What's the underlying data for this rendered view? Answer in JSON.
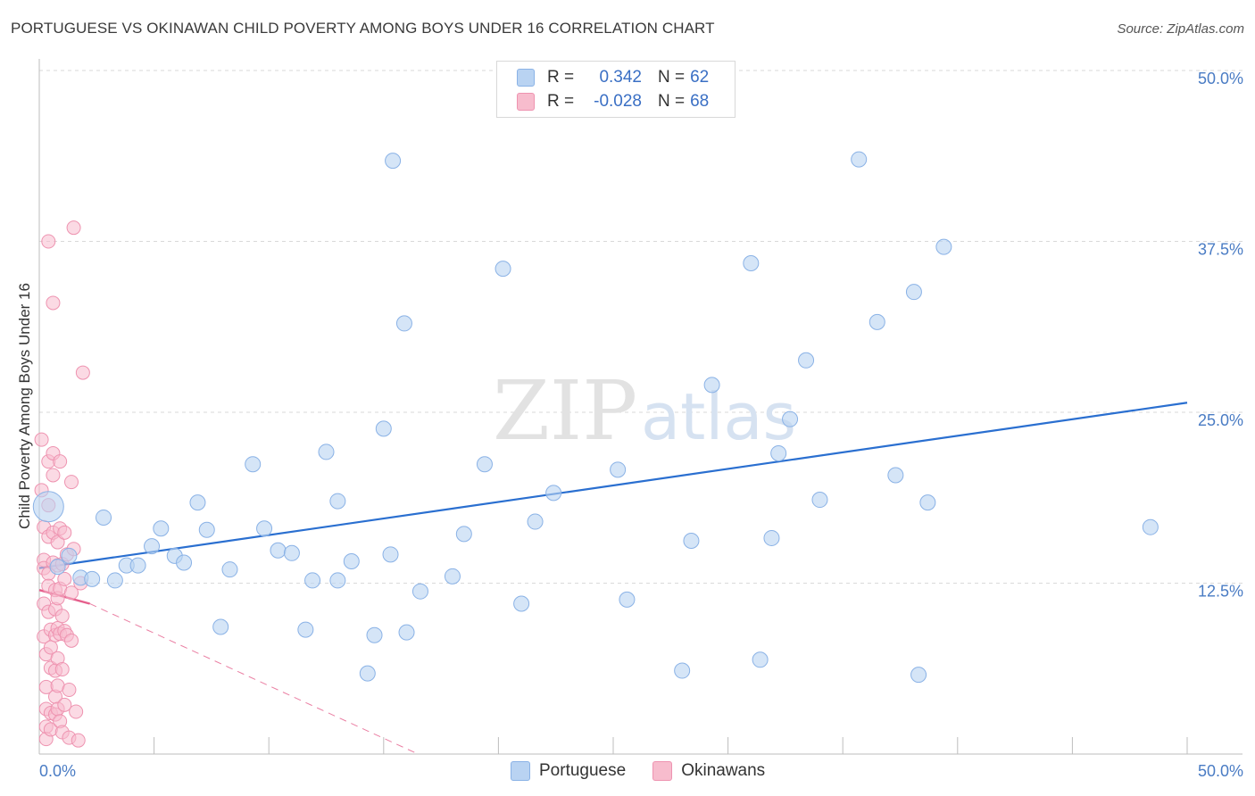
{
  "title": "PORTUGUESE VS OKINAWAN CHILD POVERTY AMONG BOYS UNDER 16 CORRELATION CHART",
  "source": "Source: ZipAtlas.com",
  "watermark": {
    "zip": "ZIP",
    "atlas": "atlas"
  },
  "colors": {
    "blue_fill": "#b9d3f2",
    "blue_stroke": "#8ab2e6",
    "blue_line": "#2a6fd0",
    "pink_fill": "#f7bccd",
    "pink_stroke": "#ee93b0",
    "pink_line": "#e55f8c",
    "grid": "#d9d9d9"
  },
  "legend": {
    "rows": [
      {
        "r_label": "R =",
        "r_value": "0.342",
        "n_label": "N =",
        "n_value": "62",
        "series": "Portuguese"
      },
      {
        "r_label": "R =",
        "r_value": "-0.028",
        "n_label": "N =",
        "n_value": "68",
        "series": "Okinawans"
      }
    ]
  },
  "bottom_legend": [
    "Portuguese",
    "Okinawans"
  ],
  "chart_data": {
    "type": "scatter",
    "title": "PORTUGUESE VS OKINAWAN CHILD POVERTY AMONG BOYS UNDER 16 CORRELATION CHART",
    "xlabel": "",
    "ylabel": "Child Poverty Among Boys Under 16",
    "xlim": [
      0,
      50
    ],
    "ylim": [
      0,
      50
    ],
    "x_tick_labels": [
      "0.0%",
      "50.0%"
    ],
    "y_ticks": [
      12.5,
      25.0,
      37.5,
      50.0
    ],
    "y_tick_labels": [
      "12.5%",
      "25.0%",
      "37.5%",
      "50.0%"
    ],
    "x_minor_ticks": [
      5,
      10,
      15,
      20,
      25,
      30,
      35,
      40,
      45,
      50
    ],
    "grid": true,
    "series": [
      {
        "name": "Portuguese",
        "r": 0.342,
        "n": 62,
        "trend": {
          "x": [
            0,
            50
          ],
          "y": [
            13.6,
            25.7
          ],
          "style": "solid"
        },
        "points": [
          [
            0.4,
            18.1
          ],
          [
            0.8,
            13.7
          ],
          [
            1.3,
            14.5
          ],
          [
            1.8,
            12.9
          ],
          [
            2.3,
            12.8
          ],
          [
            2.8,
            17.3
          ],
          [
            3.3,
            12.7
          ],
          [
            3.8,
            13.8
          ],
          [
            4.3,
            13.8
          ],
          [
            4.9,
            15.2
          ],
          [
            5.3,
            16.5
          ],
          [
            5.9,
            14.5
          ],
          [
            6.3,
            14.0
          ],
          [
            6.9,
            18.4
          ],
          [
            7.3,
            16.4
          ],
          [
            7.9,
            9.3
          ],
          [
            8.3,
            13.5
          ],
          [
            9.3,
            21.2
          ],
          [
            9.8,
            16.5
          ],
          [
            10.4,
            14.9
          ],
          [
            11.0,
            14.7
          ],
          [
            11.6,
            9.1
          ],
          [
            11.9,
            12.7
          ],
          [
            12.5,
            22.1
          ],
          [
            13.0,
            18.5
          ],
          [
            13.0,
            12.7
          ],
          [
            13.6,
            14.1
          ],
          [
            14.3,
            5.9
          ],
          [
            14.6,
            8.7
          ],
          [
            15.0,
            23.8
          ],
          [
            15.3,
            14.6
          ],
          [
            15.4,
            43.4
          ],
          [
            15.9,
            31.5
          ],
          [
            16.0,
            8.9
          ],
          [
            16.6,
            11.9
          ],
          [
            18.0,
            13.0
          ],
          [
            18.5,
            16.1
          ],
          [
            19.4,
            21.2
          ],
          [
            20.2,
            35.5
          ],
          [
            21.0,
            11.0
          ],
          [
            21.6,
            17.0
          ],
          [
            22.4,
            19.1
          ],
          [
            25.2,
            20.8
          ],
          [
            25.6,
            11.3
          ],
          [
            28.0,
            6.1
          ],
          [
            28.4,
            15.6
          ],
          [
            29.3,
            27.0
          ],
          [
            31.0,
            35.9
          ],
          [
            31.4,
            6.9
          ],
          [
            31.9,
            15.8
          ],
          [
            32.2,
            22.0
          ],
          [
            32.7,
            24.5
          ],
          [
            33.4,
            28.8
          ],
          [
            34.0,
            18.6
          ],
          [
            35.7,
            43.5
          ],
          [
            36.5,
            31.6
          ],
          [
            37.3,
            20.4
          ],
          [
            38.1,
            33.8
          ],
          [
            38.3,
            5.8
          ],
          [
            38.7,
            18.4
          ],
          [
            39.4,
            37.1
          ],
          [
            48.4,
            16.6
          ]
        ]
      },
      {
        "name": "Okinawans",
        "r": -0.028,
        "n": 68,
        "trend": {
          "x": [
            0,
            2.2
          ],
          "y": [
            12.0,
            11.0
          ],
          "style": "solid",
          "extension": {
            "x": [
              2.2,
              16.5
            ],
            "y": [
              11.0,
              0
            ]
          }
        },
        "points": [
          [
            0.1,
            23.0
          ],
          [
            0.1,
            19.3
          ],
          [
            0.2,
            16.6
          ],
          [
            0.2,
            14.2
          ],
          [
            0.2,
            13.6
          ],
          [
            0.2,
            11.0
          ],
          [
            0.2,
            8.6
          ],
          [
            0.3,
            7.3
          ],
          [
            0.3,
            4.9
          ],
          [
            0.3,
            3.3
          ],
          [
            0.3,
            2.0
          ],
          [
            0.3,
            1.1
          ],
          [
            0.4,
            37.5
          ],
          [
            0.4,
            21.4
          ],
          [
            0.4,
            18.2
          ],
          [
            0.4,
            15.9
          ],
          [
            0.4,
            13.2
          ],
          [
            0.4,
            12.3
          ],
          [
            0.4,
            10.4
          ],
          [
            0.5,
            9.1
          ],
          [
            0.5,
            7.8
          ],
          [
            0.5,
            6.3
          ],
          [
            0.5,
            3.0
          ],
          [
            0.5,
            1.8
          ],
          [
            0.6,
            33.0
          ],
          [
            0.6,
            22.0
          ],
          [
            0.6,
            20.4
          ],
          [
            0.6,
            16.2
          ],
          [
            0.6,
            14.0
          ],
          [
            0.7,
            12.0
          ],
          [
            0.7,
            10.6
          ],
          [
            0.7,
            8.7
          ],
          [
            0.7,
            6.1
          ],
          [
            0.7,
            4.2
          ],
          [
            0.7,
            2.9
          ],
          [
            0.8,
            15.5
          ],
          [
            0.8,
            13.8
          ],
          [
            0.8,
            11.4
          ],
          [
            0.8,
            9.2
          ],
          [
            0.8,
            7.0
          ],
          [
            0.8,
            5.0
          ],
          [
            0.8,
            3.3
          ],
          [
            0.9,
            21.4
          ],
          [
            0.9,
            16.5
          ],
          [
            0.9,
            12.1
          ],
          [
            0.9,
            8.8
          ],
          [
            0.9,
            2.4
          ],
          [
            1.0,
            13.9
          ],
          [
            1.0,
            10.1
          ],
          [
            1.0,
            6.2
          ],
          [
            1.0,
            1.6
          ],
          [
            1.1,
            16.2
          ],
          [
            1.1,
            12.8
          ],
          [
            1.1,
            9.0
          ],
          [
            1.1,
            3.6
          ],
          [
            1.2,
            14.6
          ],
          [
            1.2,
            8.7
          ],
          [
            1.3,
            4.7
          ],
          [
            1.3,
            1.2
          ],
          [
            1.4,
            11.8
          ],
          [
            1.4,
            8.3
          ],
          [
            1.5,
            38.5
          ],
          [
            1.5,
            15.0
          ],
          [
            1.6,
            3.1
          ],
          [
            1.7,
            1.0
          ],
          [
            1.8,
            12.5
          ],
          [
            1.4,
            19.9
          ],
          [
            1.9,
            27.9
          ]
        ]
      }
    ]
  }
}
